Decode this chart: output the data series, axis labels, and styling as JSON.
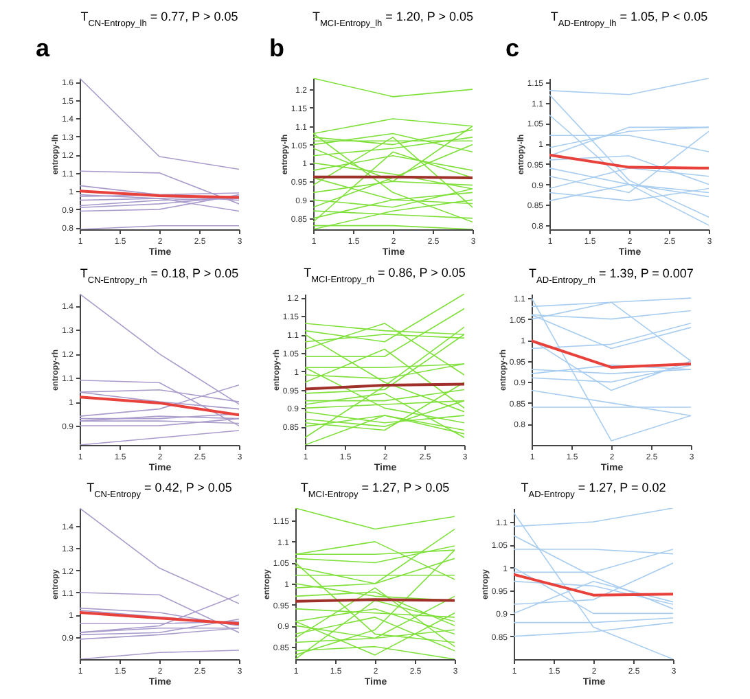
{
  "chart_data": [
    {
      "type": "line",
      "title": "T$_{CN-Entropy_lh}$ = 0.77, P > 0.05",
      "annotations": [
        "a"
      ],
      "xlabel": "Time",
      "ylabel": "entropy-lh",
      "x": [
        1,
        2,
        3
      ],
      "xlim": [
        1,
        3
      ],
      "xticks": [
        1,
        1.5,
        2,
        2.5,
        3
      ],
      "ylim": [
        0.79,
        1.62
      ],
      "yticks": [
        0.8,
        0.9,
        1,
        1.1,
        1.2,
        1.3,
        1.4,
        1.5,
        1.6
      ],
      "series": [
        {
          "color": "#a99ccc",
          "values": [
            1.62,
            1.19,
            1.12
          ]
        },
        {
          "color": "#a99ccc",
          "values": [
            1.11,
            1.1,
            0.93
          ]
        },
        {
          "color": "#a99ccc",
          "values": [
            1.03,
            0.98,
            0.95
          ]
        },
        {
          "color": "#a99ccc",
          "values": [
            0.97,
            0.98,
            0.99
          ]
        },
        {
          "color": "#a99ccc",
          "values": [
            0.92,
            0.95,
            0.96
          ]
        },
        {
          "color": "#a99ccc",
          "values": [
            0.91,
            0.93,
            0.97
          ]
        },
        {
          "color": "#a99ccc",
          "values": [
            0.89,
            0.9,
            0.98
          ]
        },
        {
          "color": "#a99ccc",
          "values": [
            0.98,
            0.96,
            0.89
          ]
        },
        {
          "color": "#a99ccc",
          "values": [
            0.79,
            0.81,
            0.81
          ]
        },
        {
          "color": "#a99ccc",
          "values": [
            0.95,
            0.96,
            0.97
          ]
        },
        {
          "color": "#e8403a",
          "values": [
            1.0,
            0.975,
            0.965
          ]
        }
      ]
    },
    {
      "type": "line",
      "title": "T$_{MCI-Entropy_lh}$ = 1.20, P > 0.05",
      "annotations": [
        "b"
      ],
      "xlabel": "Time",
      "ylabel": "entropy-lh",
      "x": [
        1,
        2,
        3
      ],
      "xlim": [
        1,
        3
      ],
      "xticks": [
        1,
        1.5,
        2,
        2.5,
        3
      ],
      "ylim": [
        0.82,
        1.23
      ],
      "yticks": [
        0.85,
        0.9,
        0.95,
        1,
        1.05,
        1.1,
        1.15,
        1.2
      ],
      "series": [
        {
          "color": "#7fe03a",
          "values": [
            1.23,
            1.18,
            1.2
          ]
        },
        {
          "color": "#7fe03a",
          "values": [
            1.08,
            1.12,
            1.1
          ]
        },
        {
          "color": "#7fe03a",
          "values": [
            1.07,
            1.05,
            1.09
          ]
        },
        {
          "color": "#7fe03a",
          "values": [
            1.06,
            1.06,
            1.06
          ]
        },
        {
          "color": "#7fe03a",
          "values": [
            1.05,
            1.08,
            1.03
          ]
        },
        {
          "color": "#7fe03a",
          "values": [
            1.04,
            0.95,
            1.1
          ]
        },
        {
          "color": "#7fe03a",
          "values": [
            1.02,
            1.04,
            1.07
          ]
        },
        {
          "color": "#7fe03a",
          "values": [
            1.0,
            0.97,
            0.93
          ]
        },
        {
          "color": "#7fe03a",
          "values": [
            0.98,
            1.02,
            0.98
          ]
        },
        {
          "color": "#7fe03a",
          "values": [
            0.96,
            0.9,
            0.92
          ]
        },
        {
          "color": "#7fe03a",
          "values": [
            0.94,
            1.07,
            0.88
          ]
        },
        {
          "color": "#7fe03a",
          "values": [
            0.92,
            0.95,
            0.94
          ]
        },
        {
          "color": "#7fe03a",
          "values": [
            0.9,
            0.88,
            0.93
          ]
        },
        {
          "color": "#7fe03a",
          "values": [
            0.88,
            0.96,
            1.05
          ]
        },
        {
          "color": "#7fe03a",
          "values": [
            0.87,
            0.86,
            0.85
          ]
        },
        {
          "color": "#7fe03a",
          "values": [
            0.85,
            0.9,
            0.89
          ]
        },
        {
          "color": "#7fe03a",
          "values": [
            0.84,
            1.03,
            0.96
          ]
        },
        {
          "color": "#7fe03a",
          "values": [
            0.83,
            0.83,
            0.82
          ]
        },
        {
          "color": "#7fe03a",
          "values": [
            0.82,
            0.87,
            0.9
          ]
        },
        {
          "color": "#7fe03a",
          "values": [
            1.08,
            0.92,
            0.84
          ]
        },
        {
          "color": "#a0302a",
          "values": [
            0.962,
            0.962,
            0.96
          ]
        }
      ]
    },
    {
      "type": "line",
      "title": "T$_{AD-Entropy_lh}$ = 1.05, P < 0.05",
      "annotations": [
        "c"
      ],
      "xlabel": "Time",
      "ylabel": "entropy-lh",
      "x": [
        1,
        2,
        3
      ],
      "xlim": [
        1,
        3
      ],
      "xticks": [
        1,
        1.5,
        2,
        2.5,
        3
      ],
      "ylim": [
        0.79,
        1.16
      ],
      "yticks": [
        0.8,
        0.85,
        0.9,
        0.95,
        1,
        1.05,
        1.1,
        1.15
      ],
      "series": [
        {
          "color": "#a8cdf0",
          "values": [
            1.13,
            1.12,
            1.16
          ]
        },
        {
          "color": "#a8cdf0",
          "values": [
            1.07,
            0.9,
            0.8
          ]
        },
        {
          "color": "#a8cdf0",
          "values": [
            1.02,
            1.02,
            0.98
          ]
        },
        {
          "color": "#a8cdf0",
          "values": [
            0.99,
            1.03,
            1.04
          ]
        },
        {
          "color": "#a8cdf0",
          "values": [
            0.96,
            0.97,
            0.9
          ]
        },
        {
          "color": "#a8cdf0",
          "values": [
            0.94,
            0.9,
            0.88
          ]
        },
        {
          "color": "#a8cdf0",
          "values": [
            0.92,
            0.88,
            1.03
          ]
        },
        {
          "color": "#a8cdf0",
          "values": [
            0.89,
            0.94,
            0.92
          ]
        },
        {
          "color": "#a8cdf0",
          "values": [
            0.88,
            0.86,
            0.89
          ]
        },
        {
          "color": "#a8cdf0",
          "values": [
            0.86,
            0.9,
            0.87
          ]
        },
        {
          "color": "#a8cdf0",
          "values": [
            1.12,
            0.91,
            0.82
          ]
        },
        {
          "color": "#a8cdf0",
          "values": [
            0.97,
            1.04,
            1.04
          ]
        },
        {
          "color": "#e8403a",
          "values": [
            0.972,
            0.942,
            0.94
          ]
        }
      ]
    },
    {
      "type": "line",
      "title": "T$_{CN-Entropy_rh}$ = 0.18, P > 0.05",
      "xlabel": "Time",
      "ylabel": "entropy-rh",
      "x": [
        1,
        2,
        3
      ],
      "xlim": [
        1,
        3
      ],
      "xticks": [
        1,
        1.5,
        2,
        2.5,
        3
      ],
      "ylim": [
        0.82,
        1.45
      ],
      "yticks": [
        0.9,
        1,
        1.1,
        1.2,
        1.3,
        1.4
      ],
      "series": [
        {
          "color": "#a99ccc",
          "values": [
            1.45,
            1.2,
            0.99
          ]
        },
        {
          "color": "#a99ccc",
          "values": [
            1.09,
            1.08,
            0.9
          ]
        },
        {
          "color": "#a99ccc",
          "values": [
            1.04,
            1.05,
            1.0
          ]
        },
        {
          "color": "#a99ccc",
          "values": [
            1.04,
            1.0,
            0.97
          ]
        },
        {
          "color": "#a99ccc",
          "values": [
            0.94,
            0.97,
            1.07
          ]
        },
        {
          "color": "#a99ccc",
          "values": [
            0.92,
            0.94,
            0.93
          ]
        },
        {
          "color": "#a99ccc",
          "values": [
            0.92,
            0.92,
            0.91
          ]
        },
        {
          "color": "#a99ccc",
          "values": [
            0.9,
            0.9,
            0.93
          ]
        },
        {
          "color": "#a99ccc",
          "values": [
            0.82,
            0.85,
            0.88
          ]
        },
        {
          "color": "#a99ccc",
          "values": [
            0.93,
            0.93,
            0.95
          ]
        },
        {
          "color": "#e8403a",
          "values": [
            1.02,
            0.995,
            0.945
          ]
        }
      ]
    },
    {
      "type": "line",
      "title": "T$_{MCI-Entropy_rh}$ = 0.86, P > 0.05",
      "xlabel": "Time",
      "ylabel": "entropy-rh",
      "x": [
        1,
        2,
        3
      ],
      "xlim": [
        1,
        3
      ],
      "xticks": [
        1,
        1.5,
        2,
        2.5,
        3
      ],
      "ylim": [
        0.8,
        1.21
      ],
      "yticks": [
        0.85,
        0.9,
        0.95,
        1,
        1.05,
        1.1,
        1.15,
        1.2
      ],
      "series": [
        {
          "color": "#7fe03a",
          "values": [
            1.13,
            1.11,
            1.1
          ]
        },
        {
          "color": "#7fe03a",
          "values": [
            1.11,
            1.08,
            1.21
          ]
        },
        {
          "color": "#7fe03a",
          "values": [
            1.08,
            1.1,
            1.09
          ]
        },
        {
          "color": "#7fe03a",
          "values": [
            1.06,
            1.13,
            0.99
          ]
        },
        {
          "color": "#7fe03a",
          "values": [
            1.04,
            1.04,
            1.17
          ]
        },
        {
          "color": "#7fe03a",
          "values": [
            1.01,
            1.01,
            1.02
          ]
        },
        {
          "color": "#7fe03a",
          "values": [
            0.99,
            0.98,
            1.02
          ]
        },
        {
          "color": "#7fe03a",
          "values": [
            0.97,
            1.06,
            0.9
          ]
        },
        {
          "color": "#7fe03a",
          "values": [
            0.94,
            0.95,
            1.1
          ]
        },
        {
          "color": "#7fe03a",
          "values": [
            0.92,
            0.92,
            0.95
          ]
        },
        {
          "color": "#7fe03a",
          "values": [
            0.9,
            0.91,
            0.92
          ]
        },
        {
          "color": "#7fe03a",
          "values": [
            0.89,
            0.86,
            0.88
          ]
        },
        {
          "color": "#7fe03a",
          "values": [
            0.87,
            0.85,
            0.92
          ]
        },
        {
          "color": "#7fe03a",
          "values": [
            0.85,
            0.88,
            0.84
          ]
        },
        {
          "color": "#7fe03a",
          "values": [
            0.82,
            0.96,
            1.12
          ]
        },
        {
          "color": "#7fe03a",
          "values": [
            0.8,
            0.88,
            0.83
          ]
        },
        {
          "color": "#7fe03a",
          "values": [
            1.01,
            0.9,
            0.86
          ]
        },
        {
          "color": "#7fe03a",
          "values": [
            0.91,
            0.94,
            0.82
          ]
        },
        {
          "color": "#7fe03a",
          "values": [
            0.86,
            0.84,
            0.97
          ]
        },
        {
          "color": "#7fe03a",
          "values": [
            1.1,
            0.97,
            0.89
          ]
        },
        {
          "color": "#a0302a",
          "values": [
            0.952,
            0.962,
            0.965
          ]
        }
      ]
    },
    {
      "type": "line",
      "title": "T$_{AD-Entropy_rh}$ = 1.39, P = 0.007",
      "xlabel": "Time",
      "ylabel": "entropy-rh",
      "x": [
        1,
        2,
        3
      ],
      "xlim": [
        1,
        3
      ],
      "xticks": [
        1,
        1.5,
        2,
        2.5,
        3
      ],
      "ylim": [
        0.75,
        1.11
      ],
      "yticks": [
        0.8,
        0.85,
        0.9,
        0.95,
        1,
        1.05,
        1.1
      ],
      "series": [
        {
          "color": "#a8cdf0",
          "values": [
            1.1,
            0.76,
            0.82
          ]
        },
        {
          "color": "#a8cdf0",
          "values": [
            1.08,
            1.09,
            0.95
          ]
        },
        {
          "color": "#a8cdf0",
          "values": [
            1.06,
            1.05,
            1.07
          ]
        },
        {
          "color": "#a8cdf0",
          "values": [
            1.06,
            0.98,
            1.03
          ]
        },
        {
          "color": "#a8cdf0",
          "values": [
            1.0,
            0.88,
            0.95
          ]
        },
        {
          "color": "#a8cdf0",
          "values": [
            0.98,
            0.99,
            1.04
          ]
        },
        {
          "color": "#a8cdf0",
          "values": [
            0.93,
            0.92,
            0.93
          ]
        },
        {
          "color": "#a8cdf0",
          "values": [
            0.92,
            0.94,
            0.93
          ]
        },
        {
          "color": "#a8cdf0",
          "values": [
            0.91,
            0.9,
            0.94
          ]
        },
        {
          "color": "#a8cdf0",
          "values": [
            0.88,
            0.85,
            0.82
          ]
        },
        {
          "color": "#a8cdf0",
          "values": [
            0.84,
            0.84,
            0.84
          ]
        },
        {
          "color": "#a8cdf0",
          "values": [
            1.05,
            1.09,
            1.1
          ]
        },
        {
          "color": "#e8403a",
          "values": [
            0.998,
            0.935,
            0.943
          ]
        }
      ]
    },
    {
      "type": "line",
      "title": "T$_{CN-Entropy}$ = 0.42, P > 0.05",
      "xlabel": "Time",
      "ylabel": "entropy",
      "x": [
        1,
        2,
        3
      ],
      "xlim": [
        1,
        3
      ],
      "xticks": [
        1,
        1.5,
        2,
        2.5,
        3
      ],
      "ylim": [
        0.8,
        1.48
      ],
      "yticks": [
        0.9,
        1,
        1.1,
        1.2,
        1.3,
        1.4
      ],
      "series": [
        {
          "color": "#a99ccc",
          "values": [
            1.48,
            1.21,
            1.05
          ]
        },
        {
          "color": "#a99ccc",
          "values": [
            1.1,
            1.09,
            0.92
          ]
        },
        {
          "color": "#a99ccc",
          "values": [
            1.03,
            1.01,
            0.95
          ]
        },
        {
          "color": "#a99ccc",
          "values": [
            1.02,
            0.99,
            0.96
          ]
        },
        {
          "color": "#a99ccc",
          "values": [
            0.92,
            0.95,
            1.09
          ]
        },
        {
          "color": "#a99ccc",
          "values": [
            0.92,
            0.94,
            0.94
          ]
        },
        {
          "color": "#a99ccc",
          "values": [
            0.91,
            0.92,
            0.98
          ]
        },
        {
          "color": "#a99ccc",
          "values": [
            0.89,
            0.91,
            0.94
          ]
        },
        {
          "color": "#a99ccc",
          "values": [
            0.8,
            0.83,
            0.84
          ]
        },
        {
          "color": "#a99ccc",
          "values": [
            0.96,
            0.96,
            0.97
          ]
        },
        {
          "color": "#e8403a",
          "values": [
            1.01,
            0.985,
            0.96
          ]
        }
      ]
    },
    {
      "type": "line",
      "title": "T$_{MCI-Entropy}$ = 1.27, P > 0.05",
      "xlabel": "Time",
      "ylabel": "entropy",
      "x": [
        1,
        2,
        3
      ],
      "xlim": [
        1,
        3
      ],
      "xticks": [
        1,
        1.5,
        2,
        2.5,
        3
      ],
      "ylim": [
        0.82,
        1.18
      ],
      "yticks": [
        0.85,
        0.9,
        0.95,
        1,
        1.05,
        1.1,
        1.15
      ],
      "series": [
        {
          "color": "#7fe03a",
          "values": [
            1.18,
            1.13,
            1.16
          ]
        },
        {
          "color": "#7fe03a",
          "values": [
            1.07,
            1.1,
            1.01
          ]
        },
        {
          "color": "#7fe03a",
          "values": [
            1.07,
            1.07,
            1.08
          ]
        },
        {
          "color": "#7fe03a",
          "values": [
            1.06,
            1.05,
            1.09
          ]
        },
        {
          "color": "#7fe03a",
          "values": [
            1.04,
            1.0,
            1.13
          ]
        },
        {
          "color": "#7fe03a",
          "values": [
            1.02,
            1.02,
            1.02
          ]
        },
        {
          "color": "#7fe03a",
          "values": [
            1.0,
            0.97,
            0.96
          ]
        },
        {
          "color": "#7fe03a",
          "values": [
            0.99,
            1.0,
            1.06
          ]
        },
        {
          "color": "#7fe03a",
          "values": [
            0.97,
            0.98,
            0.9
          ]
        },
        {
          "color": "#7fe03a",
          "values": [
            0.94,
            0.93,
            0.92
          ]
        },
        {
          "color": "#7fe03a",
          "values": [
            0.91,
            0.94,
            0.88
          ]
        },
        {
          "color": "#7fe03a",
          "values": [
            0.9,
            0.87,
            0.97
          ]
        },
        {
          "color": "#7fe03a",
          "values": [
            0.88,
            0.92,
            0.84
          ]
        },
        {
          "color": "#7fe03a",
          "values": [
            0.86,
            0.87,
            0.89
          ]
        },
        {
          "color": "#7fe03a",
          "values": [
            0.84,
            0.85,
            0.82
          ]
        },
        {
          "color": "#7fe03a",
          "values": [
            0.83,
            0.89,
            1.08
          ]
        },
        {
          "color": "#7fe03a",
          "values": [
            0.82,
            0.96,
            0.91
          ]
        },
        {
          "color": "#7fe03a",
          "values": [
            1.05,
            0.88,
            0.86
          ]
        },
        {
          "color": "#7fe03a",
          "values": [
            0.91,
            0.83,
            0.93
          ]
        },
        {
          "color": "#7fe03a",
          "values": [
            0.87,
            0.99,
            0.85
          ]
        },
        {
          "color": "#a0302a",
          "values": [
            0.958,
            0.962,
            0.96
          ]
        }
      ]
    },
    {
      "type": "line",
      "title": "T$_{AD-Entropy}$ = 1.27, P = 0.02",
      "xlabel": "Time",
      "ylabel": "entropy",
      "x": [
        1,
        2,
        3
      ],
      "xlim": [
        1,
        3
      ],
      "xticks": [
        1,
        1.5,
        2,
        2.5,
        3
      ],
      "ylim": [
        0.8,
        1.13
      ],
      "yticks": [
        0.85,
        0.9,
        0.95,
        1,
        1.05,
        1.1
      ],
      "series": [
        {
          "color": "#a8cdf0",
          "values": [
            1.09,
            1.1,
            1.13
          ]
        },
        {
          "color": "#a8cdf0",
          "values": [
            1.12,
            0.87,
            0.8
          ]
        },
        {
          "color": "#a8cdf0",
          "values": [
            1.07,
            0.98,
            0.91
          ]
        },
        {
          "color": "#a8cdf0",
          "values": [
            1.04,
            1.04,
            1.03
          ]
        },
        {
          "color": "#a8cdf0",
          "values": [
            0.99,
            0.99,
            1.04
          ]
        },
        {
          "color": "#a8cdf0",
          "values": [
            0.97,
            0.96,
            0.92
          ]
        },
        {
          "color": "#a8cdf0",
          "values": [
            0.92,
            0.93,
            1.01
          ]
        },
        {
          "color": "#a8cdf0",
          "values": [
            0.9,
            0.97,
            0.925
          ]
        },
        {
          "color": "#a8cdf0",
          "values": [
            0.88,
            0.88,
            0.89
          ]
        },
        {
          "color": "#a8cdf0",
          "values": [
            0.85,
            0.86,
            0.88
          ]
        },
        {
          "color": "#a8cdf0",
          "values": [
            1.0,
            0.9,
            0.9
          ]
        },
        {
          "color": "#e8403a",
          "values": [
            0.985,
            0.94,
            0.942
          ]
        }
      ]
    }
  ]
}
